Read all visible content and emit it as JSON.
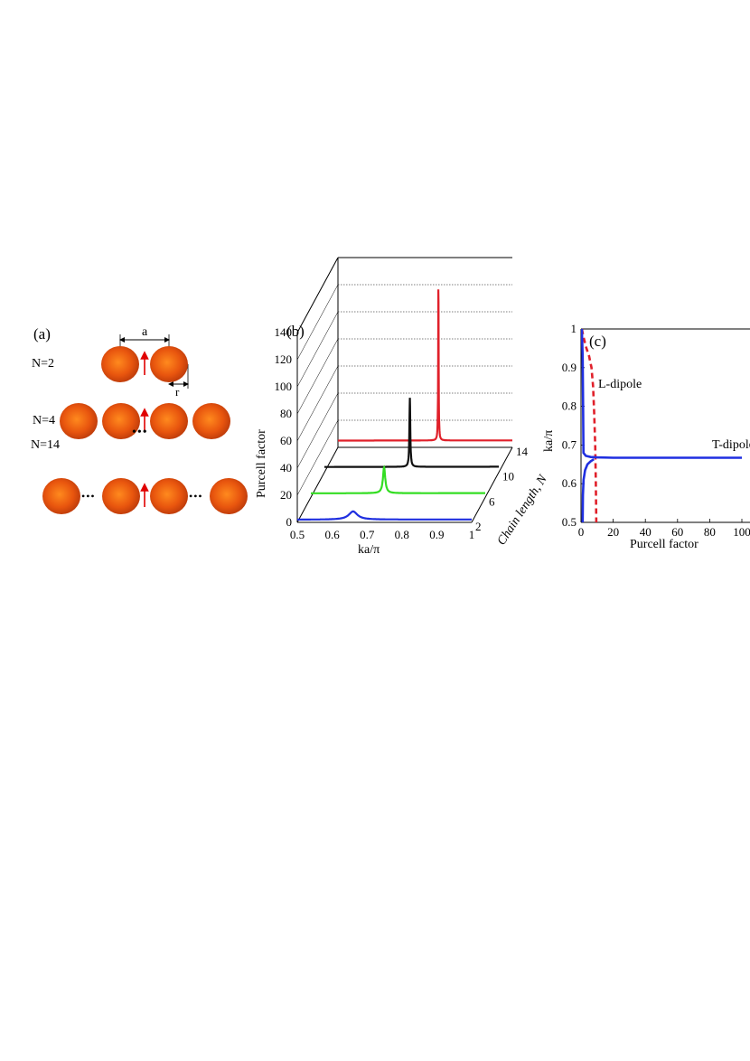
{
  "panel_a": {
    "label": "(a)",
    "dimension_a": "a",
    "dimension_r": "r",
    "rows": [
      {
        "label": "N=2",
        "spheres": 2,
        "has_ellipsis": false
      },
      {
        "label": "N=4",
        "spheres": 4,
        "has_ellipsis": false
      },
      {
        "label": "N=14",
        "spheres": 4,
        "has_ellipsis": true
      }
    ],
    "gap_ellipsis": "•••",
    "sphere_color": "#e8550e",
    "arrow_color": "#e00000"
  },
  "panel_b": {
    "label": "(b)",
    "z_label": "Purcell factor",
    "x_label": "ka/π",
    "y_label": "Chain length, N",
    "x_ticks": [
      "0.5",
      "0.6",
      "0.7",
      "0.8",
      "0.9",
      "1"
    ],
    "z_ticks": [
      "0",
      "20",
      "40",
      "60",
      "80",
      "100",
      "120",
      "140"
    ],
    "n_ticks": [
      "2",
      "6",
      "10",
      "14"
    ]
  },
  "panel_c": {
    "label": "(c)",
    "x_label": "Purcell factor",
    "y_label": "ka/π",
    "x_ticks": [
      "0",
      "20",
      "40",
      "60",
      "80",
      "100"
    ],
    "y_ticks": [
      "0.5",
      "0.6",
      "0.7",
      "0.8",
      "0.9",
      "1"
    ],
    "annotation_l": "L-dipole",
    "annotation_t": "T-dipole"
  },
  "chart_data": [
    {
      "type": "line",
      "panel": "b",
      "xlim": [
        0.5,
        1
      ],
      "zlim": [
        0,
        140
      ],
      "grid": true,
      "series": [
        {
          "N": 2,
          "color": "#1f2fe0",
          "baseline": 2,
          "peak_x": 0.66,
          "peak_y": 8,
          "width": 0.015
        },
        {
          "N": 6,
          "color": "#33dd22",
          "baseline": 3,
          "peak_x": 0.71,
          "peak_y": 22,
          "width": 0.004
        },
        {
          "N": 10,
          "color": "#111111",
          "baseline": 4,
          "peak_x": 0.745,
          "peak_y": 55,
          "width": 0.0015
        },
        {
          "N": 14,
          "color": "#e0202a",
          "baseline": 5,
          "peak_x": 0.788,
          "peak_y": 125,
          "width": 0.0008
        }
      ]
    },
    {
      "type": "line",
      "panel": "c",
      "xlim": [
        0,
        100
      ],
      "ylim": [
        0.5,
        1
      ],
      "series": [
        {
          "name": "L-dipole",
          "color": "#e0202a",
          "style": "dashed",
          "x": [
            0.5,
            1.5,
            3.0,
            5.0,
            6.5,
            7.5,
            8.2,
            8.8,
            9.2,
            9.5
          ],
          "y": [
            1.0,
            0.98,
            0.955,
            0.93,
            0.9,
            0.85,
            0.78,
            0.7,
            0.6,
            0.5
          ]
        },
        {
          "name": "T-dipole",
          "color": "#1f2fe0",
          "style": "solid",
          "x": [
            0.5,
            1.0,
            1.3,
            1.5,
            3,
            6,
            10,
            20,
            40,
            60,
            80,
            100
          ],
          "y": [
            1.0,
            0.93,
            0.8,
            0.68,
            0.672,
            0.669,
            0.668,
            0.667,
            0.667,
            0.667,
            0.667,
            0.667
          ]
        },
        {
          "name": "T-dipole-lower",
          "color": "#1f2fe0",
          "style": "solid",
          "x": [
            1.0,
            1.2,
            1.6,
            2.5,
            4.0,
            6.0,
            8.0
          ],
          "y": [
            0.5,
            0.57,
            0.61,
            0.635,
            0.65,
            0.658,
            0.663
          ]
        }
      ]
    }
  ]
}
